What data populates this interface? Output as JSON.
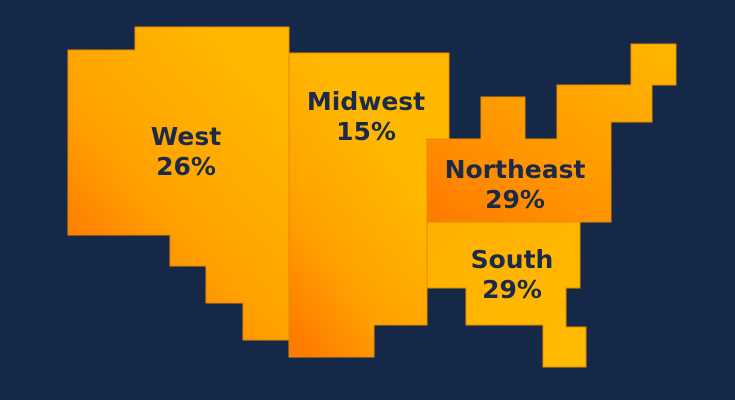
{
  "colors": {
    "background": "#162848",
    "region_light": "#FFB800",
    "region_dark": "#FF7A00",
    "label": "#1B2A47"
  },
  "regions": [
    {
      "id": "west",
      "name": "West",
      "value": "26%"
    },
    {
      "id": "midwest",
      "name": "Midwest",
      "value": "15%"
    },
    {
      "id": "northeast",
      "name": "Northeast",
      "value": "29%"
    },
    {
      "id": "south",
      "name": "South",
      "value": "29%"
    }
  ]
}
